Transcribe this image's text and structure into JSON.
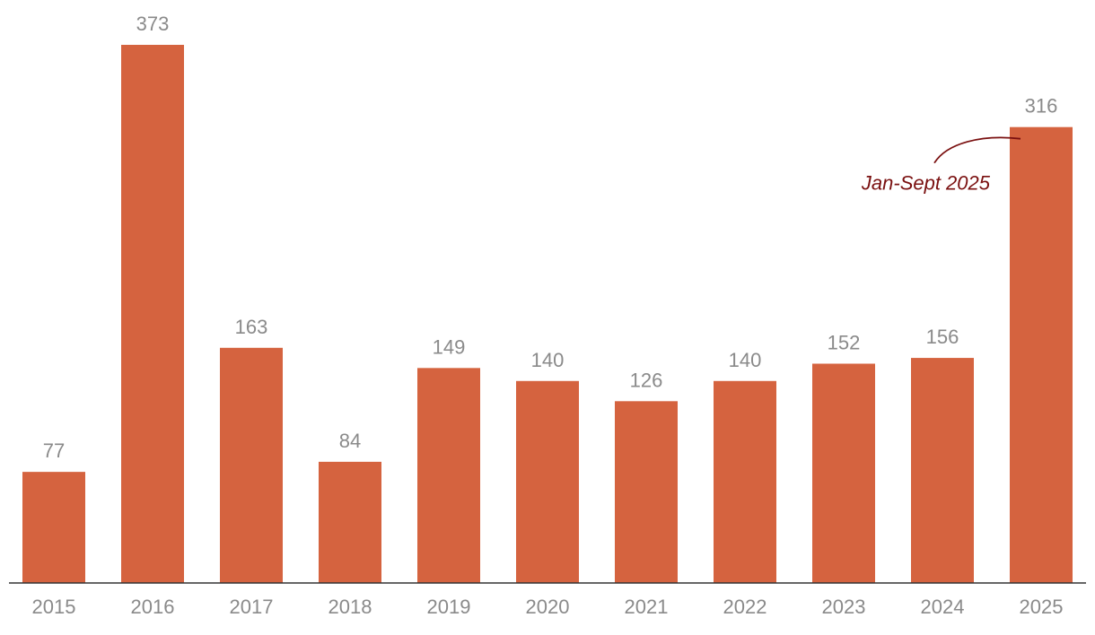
{
  "chart_data": {
    "type": "bar",
    "title": "",
    "xlabel": "",
    "ylabel": "",
    "categories": [
      "2015",
      "2016",
      "2017",
      "2018",
      "2019",
      "2020",
      "2021",
      "2022",
      "2023",
      "2024",
      "2025"
    ],
    "values": [
      77,
      373,
      163,
      84,
      149,
      140,
      126,
      140,
      152,
      156,
      316
    ],
    "ylim": [
      0,
      373
    ],
    "grid": false,
    "legend": "none",
    "colors": {
      "bar": "#d5633f",
      "value_label": "#8a8a8a",
      "tick_label": "#8a8a8a",
      "axis": "#333333",
      "annotation": "#7a1010"
    },
    "annotations": [
      {
        "text": "Jan-Sept 2025",
        "target_category": "2025"
      }
    ]
  }
}
